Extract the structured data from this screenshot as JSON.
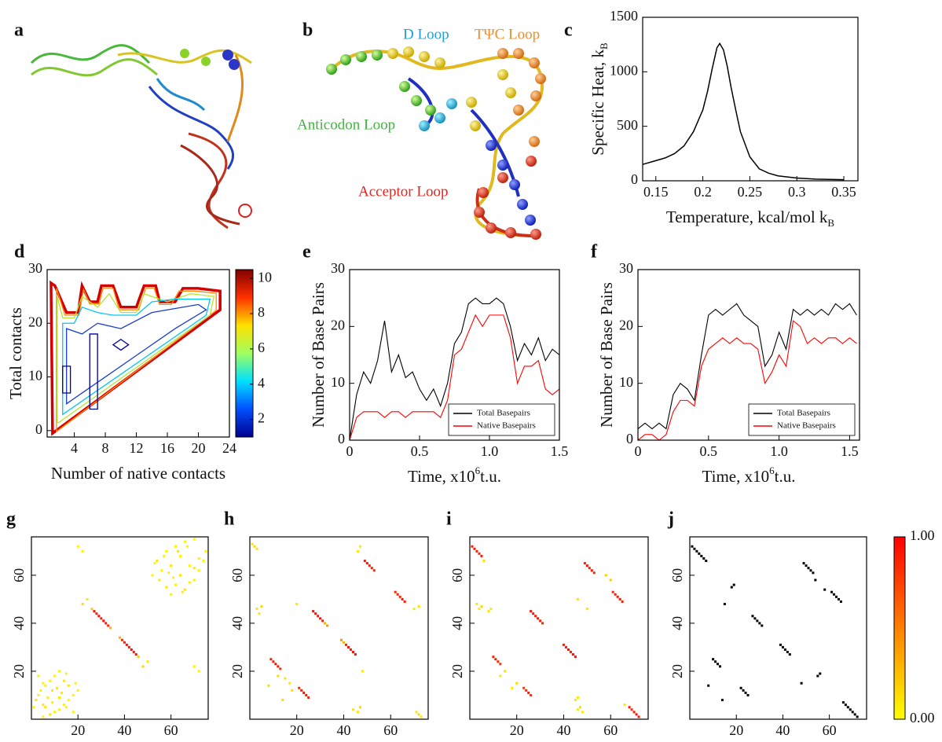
{
  "panel_labels": [
    "a",
    "b",
    "c",
    "d",
    "e",
    "f",
    "g",
    "h",
    "i",
    "j"
  ],
  "structure_labels": [
    {
      "text": "D Loop",
      "color": "#20a0d8"
    },
    {
      "text": "TΨC Loop",
      "color": "#f08c28"
    },
    {
      "text": "Anticodon Loop",
      "color": "#3cb83c"
    },
    {
      "text": "Acceptor Loop",
      "color": "#e8231e"
    }
  ],
  "chart_data": [
    {
      "type": "line",
      "xlabel": {
        "text": "Temperature, kcal/mol k",
        "subscript": "B"
      },
      "ylabel": {
        "text": "Specific Heat, k",
        "subscript": "B"
      },
      "x": [
        0.136,
        0.15,
        0.16,
        0.17,
        0.18,
        0.19,
        0.2,
        0.205,
        0.21,
        0.215,
        0.218,
        0.222,
        0.226,
        0.23,
        0.235,
        0.24,
        0.25,
        0.26,
        0.27,
        0.28,
        0.3,
        0.32,
        0.35
      ],
      "values": [
        150,
        185,
        210,
        250,
        320,
        450,
        650,
        820,
        1030,
        1220,
        1260,
        1200,
        1050,
        860,
        650,
        450,
        220,
        110,
        70,
        45,
        25,
        15,
        10
      ],
      "color": "#000000",
      "xlim": [
        0.136,
        0.365
      ],
      "xticks": [
        0.15,
        0.2,
        0.25,
        0.3,
        0.35
      ],
      "ylim": [
        0,
        1500
      ],
      "yticks": [
        0,
        500,
        1000,
        1500
      ]
    },
    {
      "type": "contour",
      "xlabel": "Number of native contacts",
      "ylabel": "Total contacts",
      "xlim": [
        0.5,
        24
      ],
      "xticks": [
        4,
        8,
        12,
        16,
        20,
        24
      ],
      "ylim": [
        -1.2,
        30
      ],
      "yticks": [
        0,
        10,
        20,
        30
      ],
      "contours": [
        {
          "color": "#d40000",
          "x": [
            1.2,
            22.8,
            22.8,
            20,
            18,
            17,
            15,
            14.5,
            13,
            12,
            10,
            9,
            7.5,
            7,
            6,
            5,
            4.5,
            3,
            1.5,
            1
          ],
          "y": [
            -0.5,
            22.5,
            26,
            26.5,
            26.5,
            24,
            24,
            27,
            27,
            23,
            23,
            27,
            27,
            24,
            24,
            27,
            22,
            22,
            27,
            27.5
          ]
        },
        {
          "color": "#ff8c00",
          "x": [
            1.7,
            22.3,
            22.3,
            19.5,
            17.5,
            16.5,
            15,
            14.3,
            13.2,
            12.3,
            9.8,
            9,
            7.7,
            7.2,
            6,
            5.2,
            4.6,
            2.8,
            1.7
          ],
          "y": [
            -0.2,
            22.4,
            25.6,
            26,
            26,
            23.5,
            23.5,
            26.5,
            26.5,
            22.5,
            22.5,
            26.5,
            26.5,
            23.6,
            23.6,
            26.3,
            21.5,
            21.5,
            26.5
          ]
        },
        {
          "color": "#b4e632",
          "x": [
            2,
            21.5,
            22,
            19,
            16,
            13,
            12,
            10,
            8.5,
            7,
            5,
            4,
            2.5,
            1.8,
            1.8
          ],
          "y": [
            1.5,
            21.5,
            25,
            25.5,
            24,
            25.5,
            22,
            22,
            25.5,
            23,
            25,
            21,
            21,
            25,
            1.5
          ]
        },
        {
          "color": "#00c8f0",
          "x": [
            2.5,
            21,
            21.5,
            17,
            14,
            12,
            9,
            7,
            5,
            4,
            2.5
          ],
          "y": [
            3,
            21.5,
            24.5,
            24.5,
            24,
            21.5,
            21.5,
            22,
            23,
            20,
            20
          ]
        },
        {
          "color": "#1a3cd2",
          "x": [
            3,
            8,
            12,
            17,
            21,
            20,
            14,
            10,
            7,
            5,
            3
          ],
          "y": [
            5,
            10,
            14,
            19,
            22.5,
            23.5,
            22,
            19,
            20,
            18,
            19
          ]
        },
        {
          "color": "#000096",
          "x": [
            6,
            7,
            7,
            6
          ],
          "y": [
            4,
            4,
            18,
            18
          ]
        },
        {
          "color": "#000096",
          "x": [
            2.5,
            3.5,
            3.5,
            2.5
          ],
          "y": [
            7,
            7,
            12,
            12
          ]
        },
        {
          "color": "#000096",
          "x": [
            10,
            11,
            10,
            9
          ],
          "y": [
            15,
            16,
            17,
            16
          ]
        }
      ],
      "colorbar": {
        "colormap": [
          "#00008f",
          "#0050ff",
          "#00e0ff",
          "#a0ff60",
          "#ffe000",
          "#ff3000",
          "#800000"
        ],
        "lim": [
          1,
          10.5
        ],
        "ticks": [
          2,
          4,
          6,
          8,
          10
        ]
      }
    },
    {
      "type": "line",
      "xlabel": {
        "text": "Time, x10",
        "superscript": "6",
        "after": "t.u."
      },
      "ylabel": "Number of Base Pairs",
      "x": [
        0,
        0.05,
        0.1,
        0.15,
        0.2,
        0.25,
        0.3,
        0.35,
        0.4,
        0.45,
        0.5,
        0.55,
        0.6,
        0.65,
        0.7,
        0.75,
        0.8,
        0.85,
        0.9,
        0.95,
        1.0,
        1.05,
        1.1,
        1.15,
        1.2,
        1.25,
        1.3,
        1.35,
        1.4,
        1.45,
        1.5
      ],
      "series": [
        {
          "name": "Total Basepairs",
          "color": "#000000",
          "values": [
            0,
            8,
            12,
            10,
            14,
            21,
            12,
            15,
            11,
            12,
            9,
            7,
            9,
            6,
            10,
            17,
            19,
            24,
            25,
            24,
            24,
            25,
            24,
            20,
            14,
            17,
            15,
            18,
            14,
            16,
            15
          ]
        },
        {
          "name": "Native Basepairs",
          "color": "#ff0000",
          "values": [
            0,
            4,
            5,
            5,
            5,
            4,
            5,
            5,
            4,
            5,
            5,
            5,
            5,
            4,
            7,
            15,
            16,
            19,
            22,
            20,
            22,
            22,
            22,
            18,
            10,
            13,
            13,
            14,
            9,
            8,
            9
          ]
        }
      ],
      "xlim": [
        0,
        1.5
      ],
      "xticks": [
        0,
        0.5,
        {
          "value": 1,
          "label": "1.0"
        },
        1.5
      ],
      "ylim": [
        0,
        30
      ],
      "yticks": [
        0,
        10,
        20,
        30
      ],
      "legend": "lower right"
    },
    {
      "type": "line",
      "xlabel": {
        "text": "Time, x10",
        "superscript": "6",
        "after": "t.u."
      },
      "ylabel": "Number of Base Pairs",
      "x": [
        0,
        0.05,
        0.1,
        0.15,
        0.2,
        0.25,
        0.3,
        0.35,
        0.4,
        0.45,
        0.5,
        0.55,
        0.6,
        0.65,
        0.7,
        0.75,
        0.8,
        0.85,
        0.9,
        0.95,
        1.0,
        1.05,
        1.1,
        1.15,
        1.2,
        1.25,
        1.3,
        1.35,
        1.4,
        1.45,
        1.5,
        1.55
      ],
      "series": [
        {
          "name": "Total Basepairs",
          "color": "#000000",
          "values": [
            2,
            3,
            2,
            3,
            2,
            8,
            10,
            9,
            7,
            15,
            22,
            23,
            22,
            23,
            24,
            22,
            21,
            20,
            13,
            15,
            19,
            16,
            23,
            22,
            23,
            22,
            23,
            22,
            24,
            23,
            24,
            22
          ]
        },
        {
          "name": "Native Basepairs",
          "color": "#ff0000",
          "values": [
            0,
            1,
            1,
            0,
            1,
            5,
            7,
            7,
            6,
            13,
            16,
            17,
            18,
            17,
            18,
            17,
            17,
            16,
            10,
            12,
            15,
            13,
            21,
            20,
            17,
            18,
            17,
            18,
            18,
            17,
            18,
            17
          ]
        }
      ],
      "xlim": [
        0,
        1.57
      ],
      "xticks": [
        0,
        0.5,
        {
          "value": 1,
          "label": "1.0"
        },
        1.5
      ],
      "ylim": [
        0,
        30
      ],
      "yticks": [
        0,
        10,
        20,
        30
      ],
      "legend": "lower right"
    },
    {
      "type": "contactmap",
      "colormap": [
        "#ffff00",
        "#ff0000"
      ],
      "xlim": [
        0,
        76
      ],
      "xticks": [
        20,
        40,
        60
      ],
      "ylim": [
        0,
        76
      ],
      "yticks": [
        20,
        40,
        60
      ],
      "x": [
        27,
        28,
        29,
        30,
        31,
        32,
        33,
        1,
        2,
        3,
        4,
        5,
        6,
        8,
        9,
        10,
        12,
        14,
        3,
        5,
        7,
        11,
        15,
        52,
        54,
        56,
        58,
        60,
        62,
        64,
        66,
        55,
        57,
        59,
        63,
        67,
        70,
        53,
        22,
        24,
        26,
        34,
        20,
        22
      ],
      "y": [
        45,
        44,
        43,
        42,
        41,
        40,
        39,
        5,
        8,
        10,
        12,
        6,
        14,
        16,
        12,
        18,
        20,
        16,
        18,
        15,
        9,
        13,
        19,
        60,
        66,
        62,
        70,
        64,
        72,
        68,
        74,
        58,
        68,
        61,
        70,
        72,
        75,
        65,
        48,
        50,
        46,
        38,
        72,
        70
      ],
      "values": [
        0.95,
        0.9,
        0.95,
        0.9,
        0.95,
        0.9,
        0.85,
        0.05,
        0.1,
        0.05,
        0.05,
        0.1,
        0.05,
        0.05,
        0.1,
        0.05,
        0.05,
        0.1,
        0.05,
        0.05,
        0.05,
        0.1,
        0.05,
        0.05,
        0.1,
        0.05,
        0.05,
        0.1,
        0.05,
        0.05,
        0.05,
        0.1,
        0.05,
        0.05,
        0.1,
        0.05,
        0.05,
        0.05,
        0.15,
        0.1,
        0.2,
        0.3,
        0.05,
        0.05
      ]
    },
    {
      "type": "contactmap",
      "colormap": [
        "#ffff00",
        "#ff0000"
      ],
      "xlim": [
        0,
        76
      ],
      "xticks": [
        20,
        40,
        60
      ],
      "ylim": [
        0,
        76
      ],
      "yticks": [
        20,
        40,
        60
      ],
      "x": [
        9,
        10,
        11,
        12,
        13,
        27,
        28,
        29,
        30,
        31,
        49,
        50,
        51,
        52,
        53,
        1,
        2,
        3,
        3,
        5,
        4,
        12,
        15,
        46,
        47,
        20,
        8,
        32,
        33
      ],
      "y": [
        25,
        24,
        23,
        22,
        21,
        45,
        44,
        43,
        42,
        41,
        66,
        65,
        64,
        63,
        62,
        73,
        72,
        71,
        46,
        47,
        44,
        18,
        17,
        70,
        72,
        48,
        14,
        40,
        39
      ],
      "values": [
        0.9,
        0.9,
        0.95,
        0.9,
        0.85,
        0.95,
        0.95,
        0.9,
        0.95,
        0.9,
        0.9,
        0.95,
        0.9,
        0.9,
        0.85,
        0.1,
        0.15,
        0.1,
        0.1,
        0.15,
        0.1,
        0.15,
        0.1,
        0.1,
        0.1,
        0.1,
        0.15,
        0.3,
        0.4
      ]
    },
    {
      "type": "contactmap",
      "colormap": [
        "#ffff00",
        "#ff0000"
      ],
      "xlim": [
        0,
        76
      ],
      "xticks": [
        20,
        40,
        60
      ],
      "ylim": [
        0,
        76
      ],
      "yticks": [
        20,
        40,
        60
      ],
      "x": [
        1,
        2,
        3,
        4,
        5,
        10,
        11,
        12,
        13,
        26,
        27,
        28,
        29,
        30,
        31,
        49,
        50,
        51,
        52,
        53,
        3,
        5,
        4,
        13,
        15,
        8,
        9,
        58,
        6,
        46
      ],
      "y": [
        72,
        71,
        70,
        69,
        68,
        26,
        25,
        24,
        23,
        45,
        44,
        43,
        42,
        41,
        40,
        65,
        64,
        63,
        62,
        61,
        48,
        47,
        46,
        18,
        20,
        45,
        46,
        60,
        66,
        50
      ],
      "values": [
        0.9,
        0.95,
        0.9,
        0.85,
        0.9,
        0.85,
        0.9,
        0.85,
        0.8,
        0.95,
        0.95,
        0.9,
        0.95,
        0.9,
        0.9,
        0.9,
        0.95,
        0.9,
        0.9,
        0.85,
        0.1,
        0.15,
        0.1,
        0.1,
        0.15,
        0.1,
        0.1,
        0.2,
        0.1,
        0.1
      ]
    },
    {
      "type": "contactmap",
      "color": "#000000",
      "xlim": [
        0,
        76
      ],
      "xticks": [
        20,
        40,
        60
      ],
      "ylim": [
        0,
        76
      ],
      "yticks": [
        20,
        40,
        60
      ],
      "x": [
        1,
        2,
        3,
        4,
        5,
        6,
        7,
        10,
        11,
        12,
        13,
        27,
        28,
        29,
        30,
        31,
        49,
        50,
        51,
        52,
        53,
        8,
        15,
        19,
        54,
        18
      ],
      "y": [
        72,
        71,
        70,
        69,
        68,
        67,
        66,
        25,
        24,
        23,
        22,
        43,
        42,
        41,
        40,
        39,
        65,
        64,
        63,
        62,
        61,
        14,
        48,
        56,
        58,
        55
      ],
      "colorbar": {
        "colormap": [
          "#ffff00",
          "#ff0000"
        ],
        "lim": [
          0,
          1
        ],
        "ticks": [
          {
            "value": 0,
            "label": "0.00"
          },
          {
            "value": 1,
            "label": "1.00"
          }
        ]
      }
    }
  ]
}
